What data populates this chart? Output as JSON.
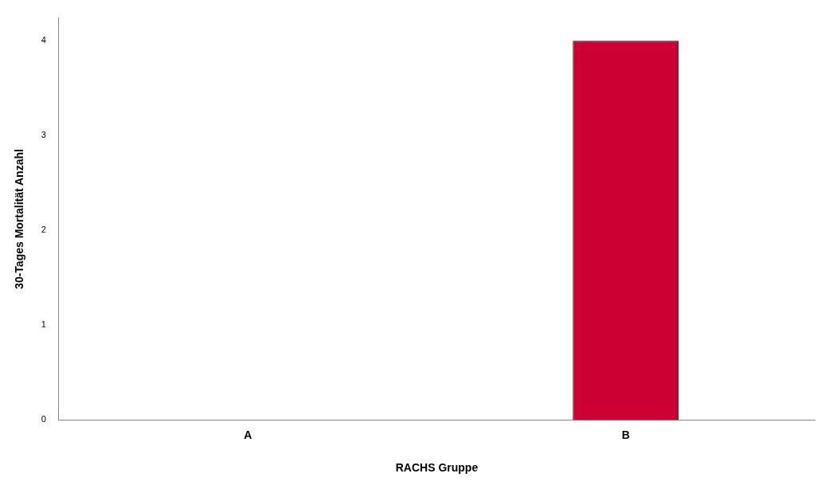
{
  "chart_data": {
    "type": "bar",
    "xlabel": "RACHS Gruppe",
    "ylabel": "30-Tages Mortalität Anzahl",
    "categories": [
      "A",
      "B"
    ],
    "values": [
      0,
      4
    ],
    "color": "#cc0033",
    "ylim": [
      0,
      4.24
    ],
    "yticks": [
      0,
      1,
      2,
      3,
      4
    ],
    "grid": false,
    "legend": false
  }
}
